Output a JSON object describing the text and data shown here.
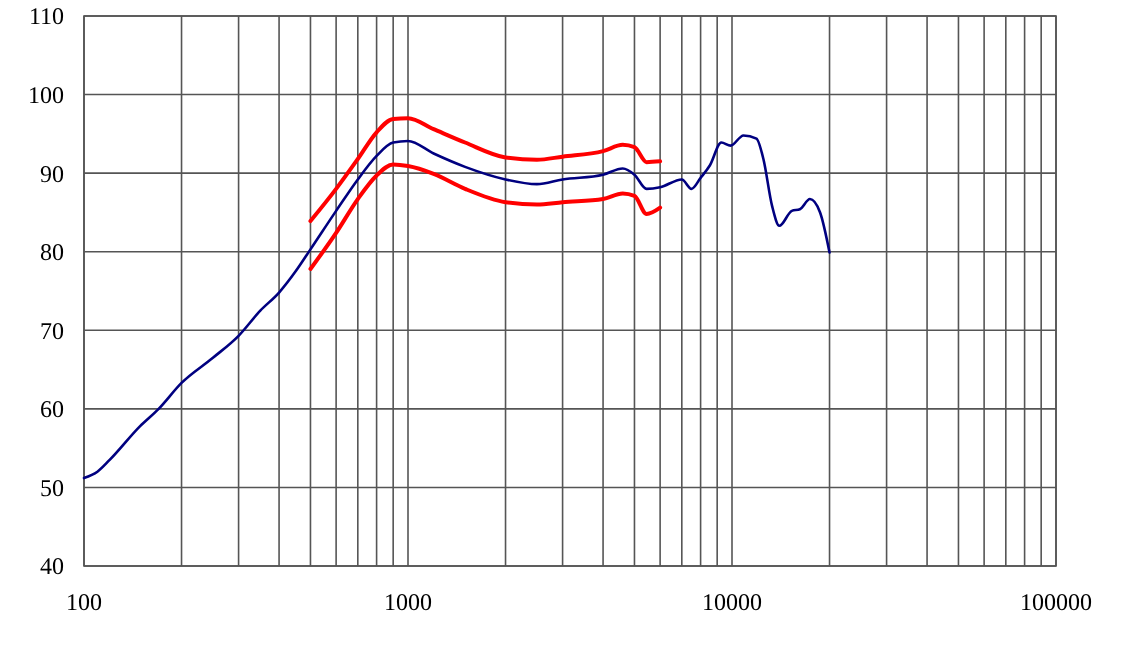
{
  "chart_data": {
    "type": "line",
    "log": "x",
    "grid": true,
    "marker": "none",
    "line_style": "solid",
    "xlim": [
      100,
      100000
    ],
    "ylim": [
      40,
      110
    ],
    "xticks": [
      100,
      {
        "value": 200,
        "label": null
      },
      {
        "value": 300,
        "label": null
      },
      {
        "value": 400,
        "label": null
      },
      {
        "value": 500,
        "label": null
      },
      {
        "value": 600,
        "label": null
      },
      {
        "value": 700,
        "label": null
      },
      {
        "value": 800,
        "label": null
      },
      {
        "value": 900,
        "label": null
      },
      1000,
      {
        "value": 2000,
        "label": null
      },
      {
        "value": 3000,
        "label": null
      },
      {
        "value": 4000,
        "label": null
      },
      {
        "value": 5000,
        "label": null
      },
      {
        "value": 6000,
        "label": null
      },
      {
        "value": 7000,
        "label": null
      },
      {
        "value": 8000,
        "label": null
      },
      {
        "value": 9000,
        "label": null
      },
      10000,
      {
        "value": 20000,
        "label": null
      },
      {
        "value": 30000,
        "label": null
      },
      {
        "value": 40000,
        "label": null
      },
      {
        "value": 50000,
        "label": null
      },
      {
        "value": 60000,
        "label": null
      },
      {
        "value": 70000,
        "label": null
      },
      {
        "value": 80000,
        "label": null
      },
      {
        "value": 90000,
        "label": null
      },
      100000
    ],
    "yticks": [
      40,
      50,
      60,
      70,
      80,
      90,
      100,
      110
    ],
    "series": [
      {
        "color": "#000080",
        "x": [
          100,
          110,
          120,
          149,
          170,
          200,
          250,
          300,
          350,
          400,
          450,
          500,
          600,
          700,
          800,
          900,
          1000,
          1200,
          1500,
          2000,
          2500,
          3000,
          4000,
          4600,
          5000,
          5450,
          6000,
          7000,
          7500,
          8000,
          8550,
          9270,
          9900,
          10850,
          11900,
          12500,
          13300,
          14000,
          15300,
          16200,
          17400,
          18700,
          20000
        ],
        "values": [
          51.2,
          52,
          53.5,
          57.8,
          60,
          63.3,
          66.5,
          69.3,
          72.5,
          74.8,
          77.5,
          80.3,
          85.2,
          89.2,
          92.2,
          93.9,
          94.1,
          92.5,
          90.8,
          89.2,
          88.6,
          89.2,
          89.8,
          90.6,
          89.8,
          88,
          88.2,
          89.2,
          88,
          89.4,
          91,
          93.9,
          93.5,
          94.8,
          94.4,
          91.8,
          85.8,
          83.3,
          85.2,
          85.4,
          86.7,
          85,
          79.9
        ]
      },
      {
        "color": "#ff0000",
        "x": [
          500,
          600,
          700,
          800,
          900,
          1000,
          1200,
          1500,
          2000,
          2500,
          3000,
          4000,
          4600,
          5000,
          5450,
          6000
        ],
        "values": [
          83.9,
          88,
          91.8,
          95.2,
          96.9,
          97,
          95.6,
          93.9,
          92,
          91.7,
          92.1,
          92.8,
          93.6,
          93.3,
          91.4,
          91.5
        ]
      },
      {
        "color": "#ff0000",
        "x": [
          500,
          600,
          700,
          800,
          900,
          1000,
          1200,
          1500,
          2000,
          2500,
          3000,
          4000,
          4600,
          5000,
          5450,
          6000
        ],
        "values": [
          77.8,
          82.4,
          86.7,
          89.7,
          91.1,
          90.9,
          89.9,
          88,
          86.3,
          86,
          86.3,
          86.7,
          87.4,
          87.1,
          84.8,
          85.6
        ]
      }
    ]
  }
}
